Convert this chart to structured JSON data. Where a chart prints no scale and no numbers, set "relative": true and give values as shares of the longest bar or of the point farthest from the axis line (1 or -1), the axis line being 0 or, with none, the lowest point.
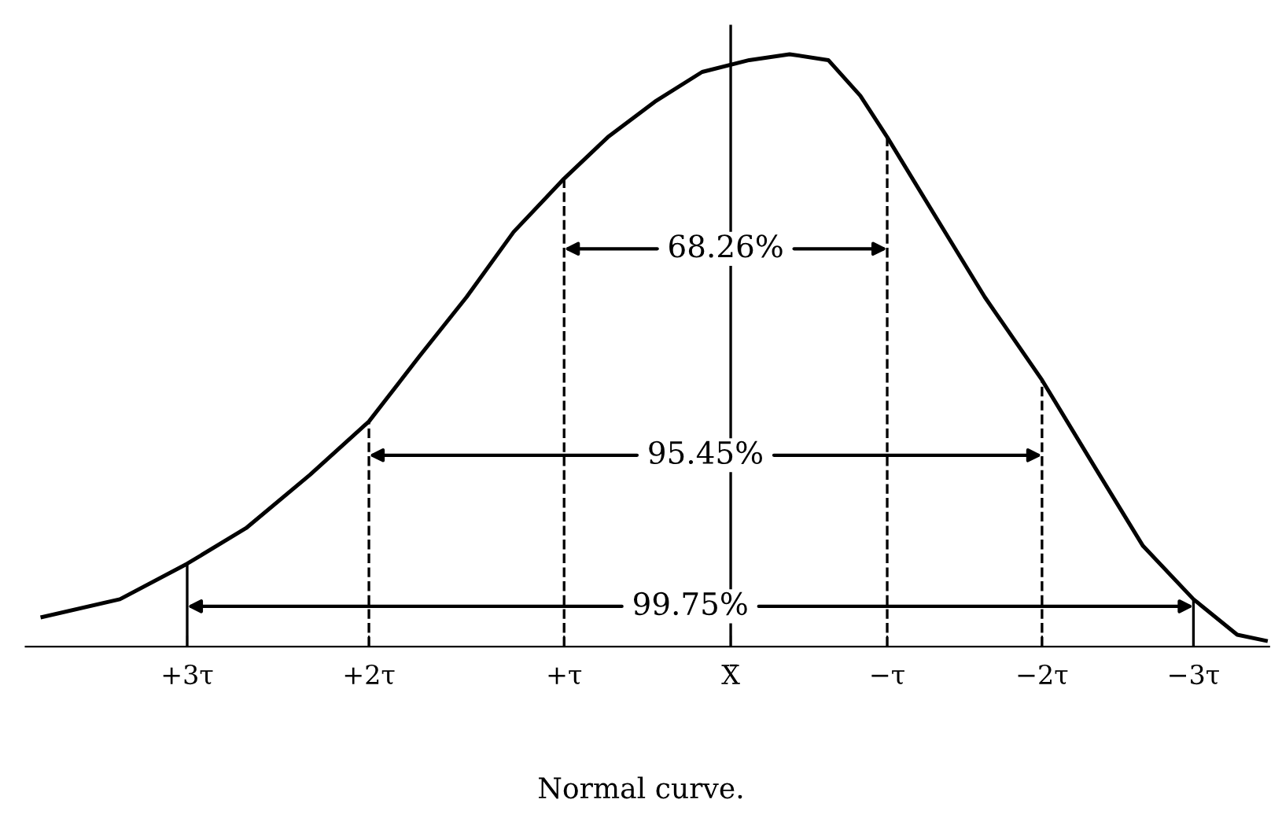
{
  "chart_data": {
    "type": "line",
    "relative": true,
    "series": [
      {
        "color": "#000000",
        "x": [
          4.09,
          3.63,
          3.23,
          2.88,
          2.5,
          2.15,
          1.85,
          1.57,
          1.29,
          0.99,
          0.73,
          0.45,
          0.17,
          -0.11,
          -0.35,
          -0.58,
          -0.77,
          -0.93,
          -1.23,
          -1.51,
          -1.85,
          -2.17,
          -2.45,
          -2.75,
          -3.01,
          -3.18
        ],
        "values": [
          0.05,
          0.08,
          0.14,
          0.2,
          0.29,
          0.38,
          0.49,
          0.59,
          0.7,
          0.79,
          0.86,
          0.92,
          0.97,
          0.99,
          1.0,
          0.99,
          0.93,
          0.86,
          0.72,
          0.59,
          0.45,
          0.3,
          0.17,
          0.08,
          0.02,
          0.01
        ]
      }
    ],
    "xlim": [
      4.19,
      -3.2
    ],
    "xticks": [
      {
        "value": 3.23,
        "label": "+3τ"
      },
      {
        "value": 2.15,
        "label": "+2τ"
      },
      {
        "value": 0.99,
        "label": "+τ"
      },
      {
        "value": 0,
        "label": "X̄"
      },
      {
        "value": -0.93,
        "label": "−τ"
      },
      {
        "value": -1.85,
        "label": "−2τ"
      },
      {
        "value": -2.75,
        "label": "−3τ"
      }
    ],
    "ref_lines": [
      {
        "axis": "x",
        "value": 0.99,
        "line_style": "dashed"
      },
      {
        "axis": "x",
        "value": -0.93,
        "line_style": "dashed"
      },
      {
        "axis": "x",
        "value": 2.15,
        "line_style": "dashed"
      },
      {
        "axis": "x",
        "value": -1.85,
        "line_style": "dashed"
      },
      {
        "axis": "x",
        "value": 3.23,
        "line_style": "solid"
      },
      {
        "axis": "x",
        "value": -2.75,
        "line_style": "solid"
      },
      {
        "axis": "x",
        "value": 0,
        "line_style": "solid"
      }
    ],
    "annotations": [
      "68.26%",
      "95.45%",
      "99.75%",
      "Normal curve."
    ],
    "grid": false,
    "legend": false,
    "marker": "none",
    "line_style": "solid"
  }
}
